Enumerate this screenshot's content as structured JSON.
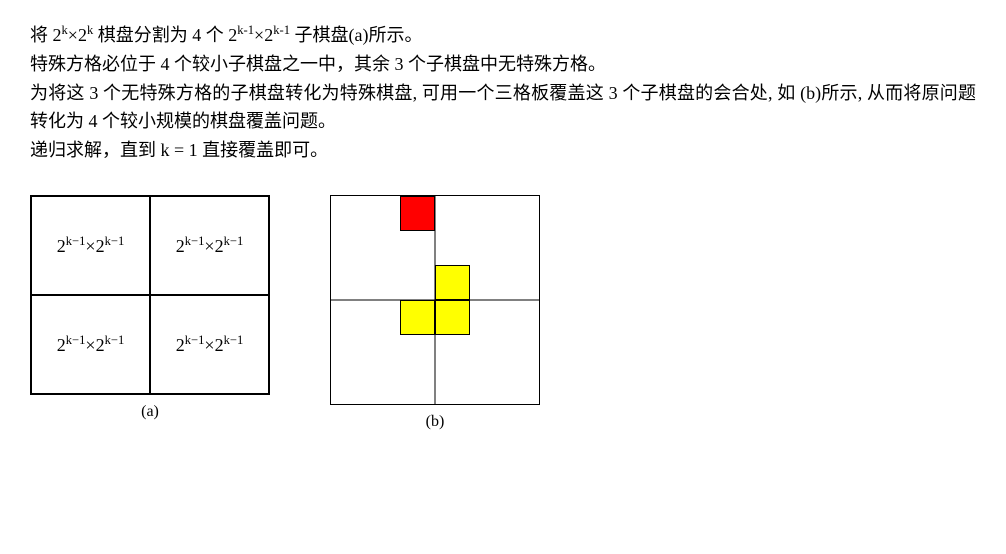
{
  "paragraphs": {
    "p1_pre": "将 2",
    "p1_sup1": "k",
    "p1_mid1": "×2",
    "p1_sup2": "k",
    "p1_mid2": " 棋盘分割为 4 个 2",
    "p1_sup3": "k-1",
    "p1_mid3": "×2",
    "p1_sup4": "k-1",
    "p1_post": "  子棋盘(a)所示。",
    "p2": "特殊方格必位于 4 个较小子棋盘之一中，其余 3 个子棋盘中无特殊方格。",
    "p3": "为将这 3 个无特殊方格的子棋盘转化为特殊棋盘, 可用一个三格板覆盖这 3 个子棋盘的会合处, 如  (b)所示, 从而将原问题转化为 4 个较小规模的棋盘覆盖问题。",
    "p4": "递归求解，直到 k = 1 直接覆盖即可。"
  },
  "figA": {
    "cell_label_base": "2",
    "cell_label_sup": "k−1",
    "cell_label_mid": "×2",
    "caption": "(a)"
  },
  "figB": {
    "caption": "(b)",
    "grid_size": 6,
    "red_color": "#ff0000",
    "yellow_color": "#ffff00",
    "border_color": "#000000",
    "red_cells": [
      [
        0,
        2
      ]
    ],
    "yellow_cells": [
      [
        2,
        3
      ],
      [
        3,
        2
      ],
      [
        3,
        3
      ]
    ]
  }
}
